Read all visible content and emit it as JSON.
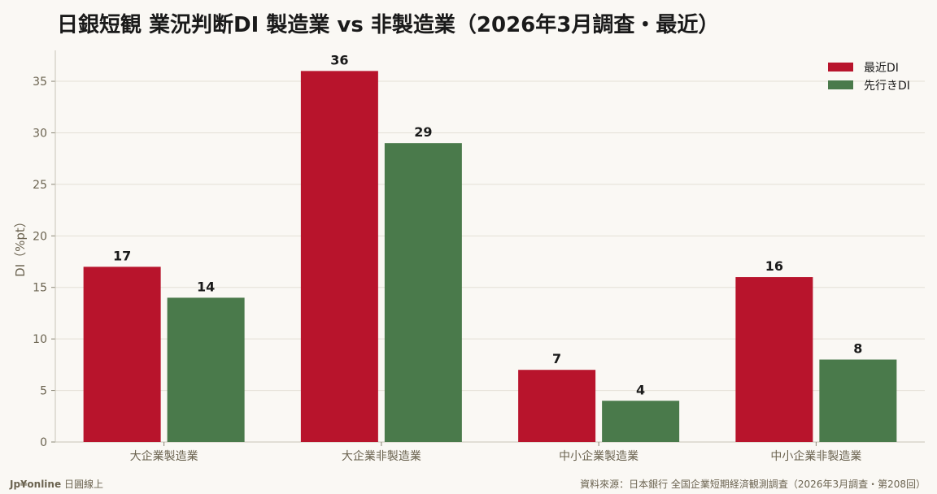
{
  "title": "日銀短観 業況判断DI 製造業 vs 非製造業（2026年3月調査・最近）",
  "footer": {
    "brand": "Jp¥online",
    "brand_suffix": "日圓線上",
    "source": "資料來源：日本銀行 全国企業短期経済観測調査（2026年3月調査・第208回）"
  },
  "chart_data": {
    "type": "bar",
    "title": "日銀短観 業況判断DI 製造業 vs 非製造業（2026年3月調査・最近）",
    "xlabel": "",
    "ylabel": "DI（%pt）",
    "ylim": [
      0,
      38
    ],
    "yticks": [
      0,
      5,
      10,
      15,
      20,
      25,
      30,
      35
    ],
    "grid": true,
    "legend_position": "top-right",
    "categories": [
      "大企業製造業",
      "大企業非製造業",
      "中小企業製造業",
      "中小企業非製造業"
    ],
    "series": [
      {
        "name": "最近DI",
        "color": "#b8142c",
        "values": [
          17,
          36,
          7,
          16
        ]
      },
      {
        "name": "先行きDI",
        "color": "#4a7a4b",
        "values": [
          14,
          29,
          4,
          8
        ]
      }
    ]
  }
}
